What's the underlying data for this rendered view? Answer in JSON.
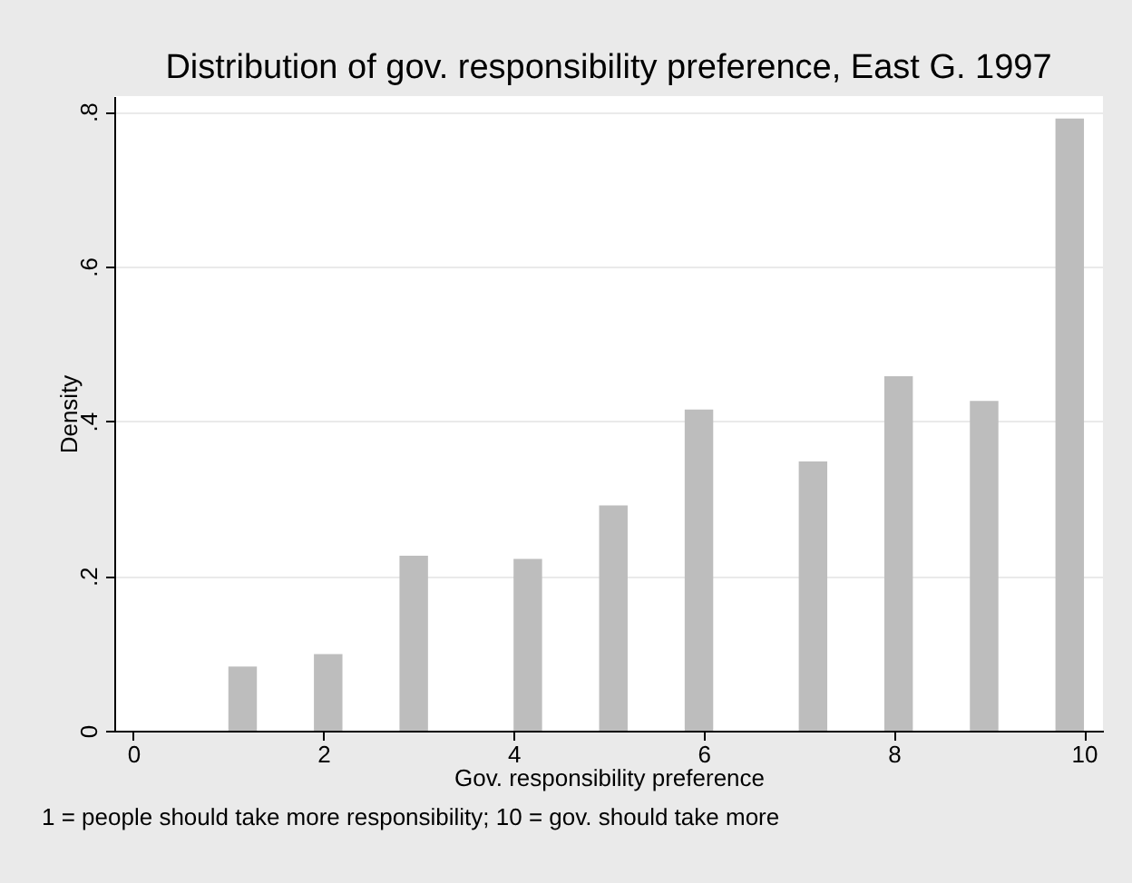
{
  "chart_data": {
    "type": "histogram",
    "title": "Distribution of gov. responsibility preference, East G. 1997",
    "xlabel": "Gov. responsibility preference",
    "ylabel": "Density",
    "annotations": [
      "1 = people should take more responsibility; 10 = gov. should take more"
    ],
    "bins": [
      1,
      1.3,
      1.6,
      1.9,
      2.2,
      2.5,
      2.8,
      3.1,
      3.4,
      3.7,
      4,
      4.3,
      4.6,
      4.9,
      5.2,
      5.5,
      5.8,
      6.1,
      6.4,
      6.7,
      7,
      7.3,
      7.6,
      7.9,
      8.2,
      8.5,
      8.8,
      9.1,
      9.4,
      9.7,
      10
    ],
    "values": [
      0.083,
      0,
      0,
      0.099,
      0,
      0,
      0.226,
      0,
      0,
      0,
      0.222,
      0,
      0,
      0.291,
      0,
      0,
      0.415,
      0,
      0,
      0,
      0.348,
      0,
      0,
      0.458,
      0,
      0,
      0.426,
      0,
      0,
      0.791
    ],
    "color": "#bdbdbd",
    "xlim": [
      -0.2,
      10.2
    ],
    "xticks": [
      0,
      2,
      4,
      6,
      8,
      10
    ],
    "ylim": [
      0,
      0.82
    ],
    "yticks": [
      0,
      {
        "value": 0.2,
        "label": ".2"
      },
      {
        "value": 0.4,
        "label": ".4"
      },
      {
        "value": 0.6,
        "label": ".6"
      },
      {
        "value": 0.8,
        "label": ".8"
      }
    ],
    "grid": "y"
  }
}
